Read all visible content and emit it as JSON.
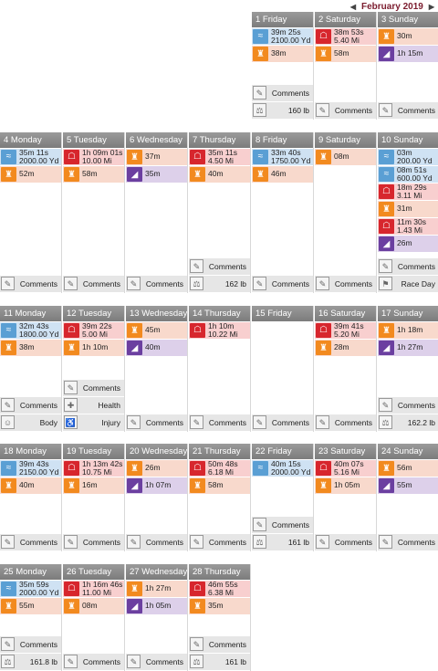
{
  "header": {
    "month_title": "February 2019",
    "prev_icon": "caret-left-icon",
    "next_icon": "caret-right-icon"
  },
  "colors": {
    "swim": "#5a9fd4",
    "bike": "#e8731c",
    "run": "#d7262d",
    "strength": "#f28a1f",
    "walk": "#6b3fa0",
    "swim_bg": "#cfe2f3",
    "bike_bg": "#f8d9cc",
    "run_bg": "#f8cfcf",
    "strength_bg": "#f8d9cc",
    "walk_bg": "#ddd0ea"
  },
  "weeks": [
    {
      "days": [
        {
          "label": "1 Friday",
          "acts": [
            {
              "type": "swim",
              "lines": [
                "39m 25s",
                "2100.00 Yd"
              ]
            },
            {
              "type": "strength",
              "lines": [
                "38m"
              ]
            }
          ],
          "bars": [
            {
              "type": "comments",
              "label": "Comments"
            },
            {
              "type": "weight",
              "label": "160 lb"
            }
          ]
        },
        {
          "label": "2 Saturday",
          "acts": [
            {
              "type": "run",
              "lines": [
                "38m 53s",
                "5.40 Mi"
              ]
            },
            {
              "type": "strength",
              "lines": [
                "58m"
              ]
            }
          ],
          "bars": [
            {
              "type": "comments",
              "label": "Comments"
            }
          ]
        },
        {
          "label": "3 Sunday",
          "acts": [
            {
              "type": "strength",
              "lines": [
                "30m"
              ]
            },
            {
              "type": "walk",
              "lines": [
                "1h 15m"
              ]
            }
          ],
          "bars": [
            {
              "type": "comments",
              "label": "Comments"
            }
          ]
        }
      ]
    },
    {
      "days": [
        {
          "label": "4 Monday",
          "acts": [
            {
              "type": "swim",
              "lines": [
                "35m 11s",
                "2000.00 Yd"
              ]
            },
            {
              "type": "strength",
              "lines": [
                "52m"
              ]
            }
          ],
          "bars": [
            {
              "type": "comments",
              "label": "Comments"
            }
          ]
        },
        {
          "label": "5 Tuesday",
          "acts": [
            {
              "type": "run",
              "lines": [
                "1h 09m 01s",
                "10.00 Mi"
              ]
            },
            {
              "type": "strength",
              "lines": [
                "58m"
              ]
            }
          ],
          "bars": [
            {
              "type": "comments",
              "label": "Comments"
            }
          ]
        },
        {
          "label": "6 Wednesday",
          "acts": [
            {
              "type": "strength",
              "lines": [
                "37m"
              ]
            },
            {
              "type": "walk",
              "lines": [
                "35m"
              ]
            }
          ],
          "bars": [
            {
              "type": "comments",
              "label": "Comments"
            }
          ]
        },
        {
          "label": "7 Thursday",
          "acts": [
            {
              "type": "run",
              "lines": [
                "35m 11s",
                "4.50 Mi"
              ]
            },
            {
              "type": "strength",
              "lines": [
                "40m"
              ]
            }
          ],
          "bars": [
            {
              "type": "comments",
              "label": "Comments"
            },
            {
              "type": "weight",
              "label": "162 lb"
            }
          ]
        },
        {
          "label": "8 Friday",
          "acts": [
            {
              "type": "swim",
              "lines": [
                "33m 40s",
                "1750.00 Yd"
              ]
            },
            {
              "type": "strength",
              "lines": [
                "46m"
              ]
            }
          ],
          "bars": [
            {
              "type": "comments",
              "label": "Comments"
            }
          ]
        },
        {
          "label": "9 Saturday",
          "acts": [
            {
              "type": "strength",
              "lines": [
                "08m"
              ]
            }
          ],
          "bars": [
            {
              "type": "comments",
              "label": "Comments"
            }
          ]
        },
        {
          "label": "10 Sunday",
          "acts": [
            {
              "type": "swim",
              "lines": [
                "03m",
                "200.00 Yd"
              ]
            },
            {
              "type": "swim",
              "lines": [
                "08m 51s",
                "600.00 Yd"
              ]
            },
            {
              "type": "run",
              "lines": [
                "18m 29s",
                "3.11 Mi"
              ]
            },
            {
              "type": "strength",
              "lines": [
                "31m"
              ]
            },
            {
              "type": "run",
              "lines": [
                "11m 30s",
                "1.43 Mi"
              ]
            },
            {
              "type": "walk",
              "lines": [
                "26m"
              ]
            }
          ],
          "bars": [
            {
              "type": "comments",
              "label": "Comments"
            },
            {
              "type": "raceday",
              "label": "Race Day"
            }
          ]
        }
      ]
    },
    {
      "days": [
        {
          "label": "11 Monday",
          "acts": [
            {
              "type": "swim",
              "lines": [
                "32m 43s",
                "1800.00 Yd"
              ]
            },
            {
              "type": "strength",
              "lines": [
                "38m"
              ]
            }
          ],
          "bars": [
            {
              "type": "comments",
              "label": "Comments"
            },
            {
              "type": "body",
              "label": "Body"
            }
          ]
        },
        {
          "label": "12 Tuesday",
          "acts": [
            {
              "type": "run",
              "lines": [
                "39m 22s",
                "5.00 Mi"
              ]
            },
            {
              "type": "strength",
              "lines": [
                "1h 10m"
              ]
            }
          ],
          "bars": [
            {
              "type": "comments",
              "label": "Comments"
            },
            {
              "type": "health",
              "label": "Health"
            },
            {
              "type": "injury",
              "label": "Injury"
            }
          ]
        },
        {
          "label": "13 Wednesday",
          "acts": [
            {
              "type": "strength",
              "lines": [
                "45m"
              ]
            },
            {
              "type": "walk",
              "lines": [
                "40m"
              ]
            }
          ],
          "bars": [
            {
              "type": "comments",
              "label": "Comments"
            }
          ]
        },
        {
          "label": "14 Thursday",
          "acts": [
            {
              "type": "run",
              "lines": [
                "1h 10m",
                "10.22 Mi"
              ]
            }
          ],
          "bars": [
            {
              "type": "comments",
              "label": "Comments"
            }
          ]
        },
        {
          "label": "15 Friday",
          "acts": [],
          "bars": [
            {
              "type": "comments",
              "label": "Comments"
            }
          ]
        },
        {
          "label": "16 Saturday",
          "acts": [
            {
              "type": "run",
              "lines": [
                "39m 41s",
                "5.20 Mi"
              ]
            },
            {
              "type": "strength",
              "lines": [
                "28m"
              ]
            }
          ],
          "bars": [
            {
              "type": "comments",
              "label": "Comments"
            }
          ]
        },
        {
          "label": "17 Sunday",
          "acts": [
            {
              "type": "strength",
              "lines": [
                "1h 18m"
              ]
            },
            {
              "type": "walk",
              "lines": [
                "1h 27m"
              ]
            }
          ],
          "bars": [
            {
              "type": "comments",
              "label": "Comments"
            },
            {
              "type": "weight",
              "label": "162.2 lb"
            }
          ]
        }
      ]
    },
    {
      "days": [
        {
          "label": "18 Monday",
          "acts": [
            {
              "type": "swim",
              "lines": [
                "39m 43s",
                "2150.00 Yd"
              ]
            },
            {
              "type": "strength",
              "lines": [
                "40m"
              ]
            }
          ],
          "bars": [
            {
              "type": "comments",
              "label": "Comments"
            }
          ]
        },
        {
          "label": "19 Tuesday",
          "acts": [
            {
              "type": "run",
              "lines": [
                "1h 13m 42s",
                "10.75 Mi"
              ]
            },
            {
              "type": "strength",
              "lines": [
                "16m"
              ]
            }
          ],
          "bars": [
            {
              "type": "comments",
              "label": "Comments"
            }
          ]
        },
        {
          "label": "20 Wednesday",
          "acts": [
            {
              "type": "strength",
              "lines": [
                "26m"
              ]
            },
            {
              "type": "walk",
              "lines": [
                "1h 07m"
              ]
            }
          ],
          "bars": [
            {
              "type": "comments",
              "label": "Comments"
            }
          ]
        },
        {
          "label": "21 Thursday",
          "acts": [
            {
              "type": "run",
              "lines": [
                "50m 48s",
                "6.18 Mi"
              ]
            },
            {
              "type": "strength",
              "lines": [
                "58m"
              ]
            }
          ],
          "bars": [
            {
              "type": "comments",
              "label": "Comments"
            }
          ]
        },
        {
          "label": "22 Friday",
          "acts": [
            {
              "type": "swim",
              "lines": [
                "40m 15s",
                "2000.00 Yd"
              ]
            }
          ],
          "bars": [
            {
              "type": "comments",
              "label": "Comments"
            },
            {
              "type": "weight",
              "label": "161 lb"
            }
          ]
        },
        {
          "label": "23 Saturday",
          "acts": [
            {
              "type": "run",
              "lines": [
                "40m 07s",
                "5.16 Mi"
              ]
            },
            {
              "type": "strength",
              "lines": [
                "1h 05m"
              ]
            }
          ],
          "bars": [
            {
              "type": "comments",
              "label": "Comments"
            }
          ]
        },
        {
          "label": "24 Sunday",
          "acts": [
            {
              "type": "strength",
              "lines": [
                "56m"
              ]
            },
            {
              "type": "walk",
              "lines": [
                "55m"
              ]
            }
          ],
          "bars": [
            {
              "type": "comments",
              "label": "Comments"
            }
          ]
        }
      ]
    },
    {
      "days": [
        {
          "label": "25 Monday",
          "acts": [
            {
              "type": "swim",
              "lines": [
                "35m 59s",
                "2000.00 Yd"
              ]
            },
            {
              "type": "strength",
              "lines": [
                "55m"
              ]
            }
          ],
          "bars": [
            {
              "type": "comments",
              "label": "Comments"
            },
            {
              "type": "weight",
              "label": "161.8 lb"
            }
          ]
        },
        {
          "label": "26 Tuesday",
          "acts": [
            {
              "type": "run",
              "lines": [
                "1h 16m 46s",
                "11.00 Mi"
              ]
            },
            {
              "type": "strength",
              "lines": [
                "08m"
              ]
            }
          ],
          "bars": [
            {
              "type": "comments",
              "label": "Comments"
            }
          ]
        },
        {
          "label": "27 Wednesday",
          "acts": [
            {
              "type": "strength",
              "lines": [
                "1h 27m"
              ]
            },
            {
              "type": "walk",
              "lines": [
                "1h 05m"
              ]
            }
          ],
          "bars": [
            {
              "type": "comments",
              "label": "Comments"
            }
          ]
        },
        {
          "label": "28 Thursday",
          "acts": [
            {
              "type": "run",
              "lines": [
                "46m 55s",
                "6.38 Mi"
              ]
            },
            {
              "type": "strength",
              "lines": [
                "35m"
              ]
            }
          ],
          "bars": [
            {
              "type": "comments",
              "label": "Comments"
            },
            {
              "type": "weight",
              "label": "161 lb"
            }
          ]
        }
      ]
    }
  ]
}
